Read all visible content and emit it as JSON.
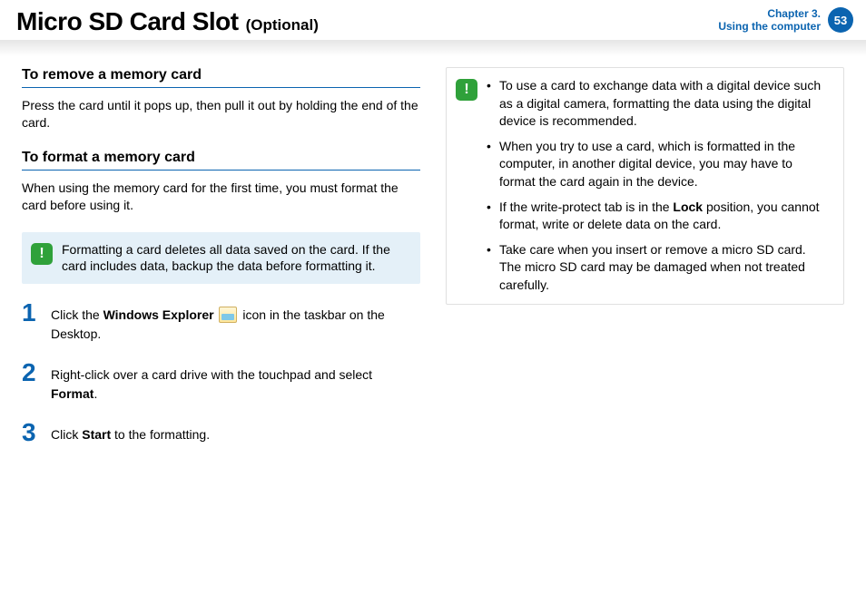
{
  "header": {
    "title": "Micro SD Card Slot",
    "subtitle": "(Optional)",
    "chapter_line1": "Chapter 3.",
    "chapter_line2": "Using the computer",
    "page_number": "53"
  },
  "left": {
    "section1_heading": "To remove a memory card",
    "section1_body": "Press the card until it pops up, then pull it out by holding the end of the card.",
    "section2_heading": "To format a memory card",
    "section2_body": "When using the memory card for the first time, you must format the card before using it.",
    "warning_text": "Formatting a card deletes all data saved on the card. If the card includes data, backup the data before formatting it.",
    "steps": [
      {
        "num": "1",
        "pre": "Click the ",
        "bold1": "Windows Explorer",
        "mid": " ",
        "icon": true,
        "post": " icon in the taskbar on the Desktop."
      },
      {
        "num": "2",
        "pre": "Right-click over a card drive with the touchpad and select ",
        "bold1": "Format",
        "mid": ".",
        "icon": false,
        "post": ""
      },
      {
        "num": "3",
        "pre": "Click ",
        "bold1": "Start",
        "mid": " to the formatting.",
        "icon": false,
        "post": ""
      }
    ]
  },
  "right": {
    "bullets": [
      "To use a card to exchange data with a digital device such as a digital camera, formatting the data using the digital device is recommended.",
      "When you try to use a card, which is formatted in the computer, in another digital device, you may have to format the card again in the device.",
      {
        "pre": "If the write-protect tab is in the ",
        "bold": "Lock",
        "post": " position, you cannot format, write or delete data on the card."
      },
      "Take care when you insert or remove a micro SD card. The micro SD card may be damaged when not treated carefully."
    ]
  },
  "colors": {
    "brand_blue": "#0b64b0",
    "note_blue_bg": "#e4f0f8",
    "icon_green": "#2fa13a"
  }
}
